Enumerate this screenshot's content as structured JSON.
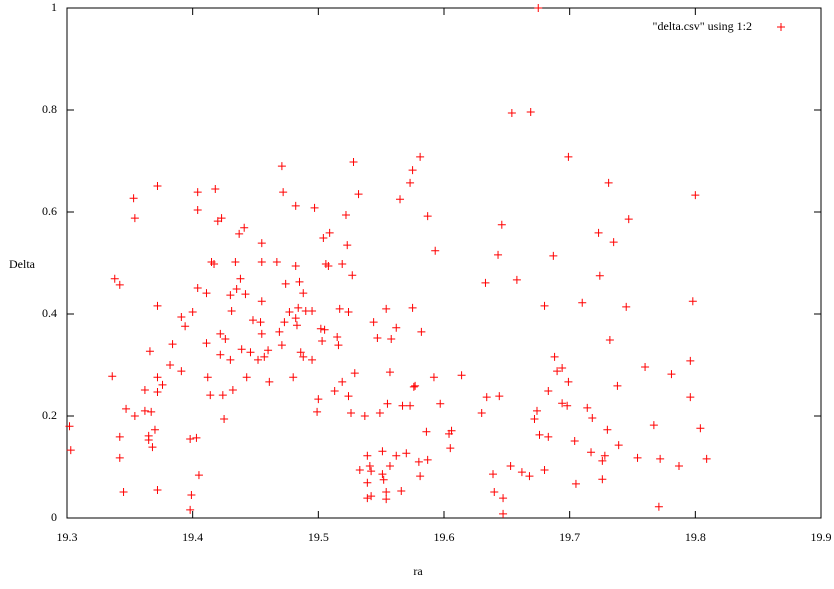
{
  "chart_data": {
    "type": "scatter",
    "xlabel": "ra",
    "ylabel": "Delta",
    "xlim": [
      19.3,
      19.9
    ],
    "ylim": [
      0,
      1
    ],
    "xticks": [
      19.3,
      19.4,
      19.5,
      19.6,
      19.7,
      19.8,
      19.9
    ],
    "yticks": [
      0,
      0.2,
      0.4,
      0.6,
      0.8,
      1
    ],
    "legend": "top-right",
    "series": [
      {
        "name": "\"delta.csv\" using 1:2",
        "color": "#ff0000",
        "x": [
          19.302,
          19.303,
          19.336,
          19.338,
          19.342,
          19.342,
          19.342,
          19.345,
          19.347,
          19.353,
          19.354,
          19.354,
          19.362,
          19.362,
          19.365,
          19.366,
          19.365,
          19.367,
          19.368,
          19.37,
          19.372,
          19.372,
          19.372,
          19.372,
          19.372,
          19.376,
          19.382,
          19.384,
          19.391,
          19.394,
          19.391,
          19.398,
          19.399,
          19.398,
          19.4,
          19.403,
          19.404,
          19.404,
          19.404,
          19.405,
          19.411,
          19.411,
          19.412,
          19.414,
          19.415,
          19.417,
          19.418,
          19.42,
          19.422,
          19.422,
          19.423,
          19.424,
          19.425,
          19.426,
          19.43,
          19.43,
          19.431,
          19.432,
          19.435,
          19.434,
          19.437,
          19.438,
          19.441,
          19.439,
          19.442,
          19.443,
          19.446,
          19.448,
          19.452,
          19.454,
          19.455,
          19.455,
          19.455,
          19.455,
          19.457,
          19.46,
          19.461,
          19.467,
          19.469,
          19.471,
          19.472,
          19.473,
          19.471,
          19.474,
          19.477,
          19.48,
          19.482,
          19.482,
          19.482,
          19.483,
          19.484,
          19.485,
          19.486,
          19.488,
          19.488,
          19.49,
          19.495,
          19.495,
          19.497,
          19.499,
          19.5,
          19.502,
          19.503,
          19.504,
          19.506,
          19.508,
          19.505,
          19.509,
          19.515,
          19.513,
          19.516,
          19.519,
          19.519,
          19.517,
          19.522,
          19.523,
          19.524,
          19.524,
          19.526,
          19.527,
          19.528,
          19.529,
          19.532,
          19.533,
          19.537,
          19.539,
          19.539,
          19.539,
          19.541,
          19.542,
          19.542,
          19.544,
          19.547,
          19.549,
          19.551,
          19.551,
          19.552,
          19.554,
          19.554,
          19.554,
          19.555,
          19.557,
          19.557,
          19.558,
          19.562,
          19.562,
          19.565,
          19.566,
          19.567,
          19.57,
          19.573,
          19.573,
          19.575,
          19.575,
          19.576,
          19.577,
          19.58,
          19.581,
          19.581,
          19.582,
          19.586,
          19.587,
          19.587,
          19.592,
          19.593,
          19.597,
          19.604,
          19.605,
          19.606,
          19.614,
          19.63,
          19.633,
          19.634,
          19.639,
          19.64,
          19.643,
          19.644,
          19.646,
          19.647,
          19.647,
          19.653,
          19.654,
          19.658,
          19.662,
          19.668,
          19.669,
          19.672,
          19.674,
          19.675,
          19.676,
          19.68,
          19.68,
          19.683,
          19.683,
          19.687,
          19.688,
          19.69,
          19.694,
          19.694,
          19.698,
          19.699,
          19.699,
          19.704,
          19.705,
          19.71,
          19.714,
          19.717,
          19.718,
          19.723,
          19.724,
          19.726,
          19.726,
          19.728,
          19.73,
          19.731,
          19.732,
          19.735,
          19.738,
          19.739,
          19.745,
          19.747,
          19.754,
          19.76,
          19.767,
          19.771,
          19.772,
          19.781,
          19.787,
          19.796,
          19.796,
          19.798,
          19.8,
          19.804,
          19.809
        ],
        "values": [
          0.18,
          0.133,
          0.278,
          0.469,
          0.457,
          0.159,
          0.118,
          0.051,
          0.214,
          0.627,
          0.588,
          0.2,
          0.251,
          0.21,
          0.161,
          0.327,
          0.153,
          0.208,
          0.139,
          0.173,
          0.651,
          0.055,
          0.416,
          0.276,
          0.247,
          0.261,
          0.3,
          0.341,
          0.394,
          0.376,
          0.288,
          0.155,
          0.045,
          0.016,
          0.404,
          0.157,
          0.604,
          0.639,
          0.451,
          0.084,
          0.441,
          0.343,
          0.276,
          0.241,
          0.502,
          0.498,
          0.645,
          0.582,
          0.361,
          0.32,
          0.588,
          0.241,
          0.194,
          0.351,
          0.437,
          0.31,
          0.406,
          0.251,
          0.449,
          0.502,
          0.557,
          0.469,
          0.569,
          0.331,
          0.439,
          0.276,
          0.325,
          0.388,
          0.31,
          0.384,
          0.502,
          0.539,
          0.425,
          0.361,
          0.316,
          0.329,
          0.267,
          0.502,
          0.365,
          0.69,
          0.639,
          0.384,
          0.339,
          0.459,
          0.404,
          0.276,
          0.392,
          0.612,
          0.494,
          0.378,
          0.412,
          0.463,
          0.325,
          0.441,
          0.316,
          0.406,
          0.406,
          0.31,
          0.608,
          0.208,
          0.233,
          0.371,
          0.347,
          0.549,
          0.498,
          0.494,
          0.369,
          0.559,
          0.355,
          0.249,
          0.339,
          0.267,
          0.498,
          0.41,
          0.594,
          0.535,
          0.404,
          0.239,
          0.206,
          0.476,
          0.698,
          0.284,
          0.635,
          0.094,
          0.2,
          0.122,
          0.069,
          0.039,
          0.102,
          0.043,
          0.092,
          0.384,
          0.353,
          0.206,
          0.131,
          0.086,
          0.075,
          0.051,
          0.037,
          0.41,
          0.224,
          0.286,
          0.102,
          0.351,
          0.122,
          0.373,
          0.625,
          0.053,
          0.22,
          0.127,
          0.22,
          0.657,
          0.682,
          0.412,
          0.257,
          0.259,
          0.11,
          0.708,
          0.082,
          0.365,
          0.169,
          0.592,
          0.114,
          0.276,
          0.524,
          0.224,
          0.165,
          0.137,
          0.171,
          0.28,
          0.206,
          0.461,
          0.237,
          0.086,
          0.051,
          0.516,
          0.239,
          0.575,
          0.039,
          0.008,
          0.102,
          0.794,
          0.467,
          0.09,
          0.082,
          0.796,
          0.194,
          0.21,
          1,
          0.163,
          0.416,
          0.094,
          0.159,
          0.249,
          0.514,
          0.316,
          0.288,
          0.294,
          0.225,
          0.22,
          0.267,
          0.708,
          0.151,
          0.067,
          0.422,
          0.216,
          0.129,
          0.196,
          0.559,
          0.475,
          0.112,
          0.076,
          0.122,
          0.173,
          0.657,
          0.349,
          0.541,
          0.259,
          0.143,
          0.414,
          0.586,
          0.118,
          0.296,
          0.182,
          0.022,
          0.116,
          0.282,
          0.102,
          0.308,
          0.237,
          0.425,
          0.633,
          0.176,
          0.116
        ]
      }
    ]
  }
}
